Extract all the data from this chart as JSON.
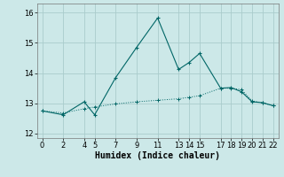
{
  "title": "",
  "xlabel": "Humidex (Indice chaleur)",
  "bg_color": "#cce8e8",
  "grid_color": "#aacccc",
  "line_color": "#006666",
  "xlim": [
    -0.5,
    22.5
  ],
  "ylim": [
    11.85,
    16.3
  ],
  "yticks": [
    12,
    13,
    14,
    15,
    16
  ],
  "xticks": [
    0,
    2,
    4,
    5,
    7,
    9,
    11,
    13,
    14,
    15,
    17,
    18,
    19,
    20,
    21,
    22
  ],
  "line1_x": [
    0,
    2,
    4,
    5,
    7,
    9,
    11,
    13,
    14,
    15,
    17,
    18,
    19,
    20,
    21,
    22
  ],
  "line1_y": [
    12.75,
    12.62,
    13.05,
    12.62,
    13.85,
    14.85,
    15.82,
    14.12,
    14.35,
    14.65,
    13.5,
    13.52,
    13.38,
    13.05,
    13.02,
    12.92
  ],
  "line2_x": [
    0,
    2,
    4,
    5,
    7,
    9,
    11,
    13,
    14,
    15,
    17,
    18,
    19,
    20,
    21,
    22
  ],
  "line2_y": [
    12.75,
    12.68,
    12.82,
    12.88,
    12.98,
    13.05,
    13.1,
    13.15,
    13.2,
    13.25,
    13.5,
    13.5,
    13.45,
    13.08,
    13.02,
    12.92
  ],
  "fontsize_xlabel": 7,
  "fontsize_ytick": 6,
  "fontsize_xtick": 6
}
